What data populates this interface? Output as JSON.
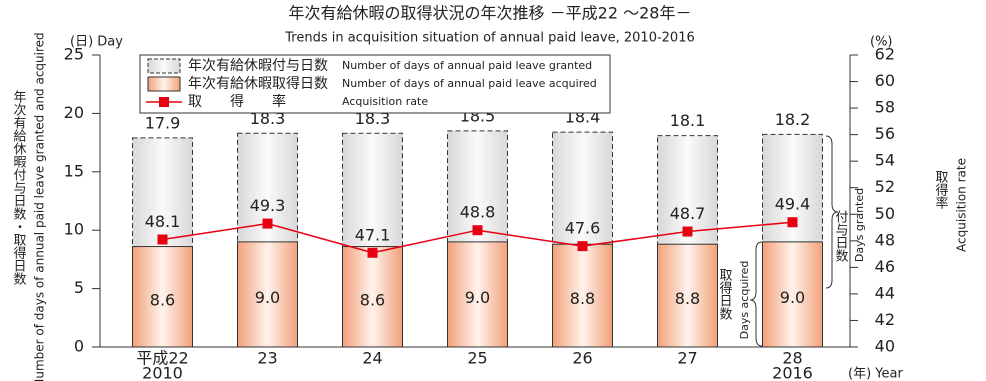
{
  "chart_data": {
    "type": "bar",
    "title": "年次有給休暇の取得状況の年次推移 －平成22 ～28年－",
    "subtitle": "Trends in acquisition situation of annual paid leave, 2010-2016",
    "y_unit": "(日) Day",
    "y_label_jp": "年次有給休暇付与日数・取得日数",
    "y_label_en": "Number of days of annual paid leave granted and acquired",
    "y2_unit": "(%)",
    "y2_label_jp": "取得率",
    "y2_label_en": "Acquisition rate",
    "x_unit": "(年) Year",
    "categories": [
      "平成22",
      "23",
      "24",
      "25",
      "26",
      "27",
      "28"
    ],
    "x_sublabels": [
      "2010",
      null,
      null,
      null,
      null,
      null,
      "2016"
    ],
    "series": [
      {
        "name": "年次有給休暇付与日数",
        "name_en": "Number of days of annual paid leave granted",
        "color": "#e4e4e4",
        "values": [
          17.9,
          18.3,
          18.3,
          18.5,
          18.4,
          18.1,
          18.2
        ]
      },
      {
        "name": "年次有給休暇取得日数",
        "name_en": "Number of days of annual paid leave acquired",
        "color": "#f2a07a",
        "values": [
          8.6,
          9.0,
          8.6,
          9.0,
          8.8,
          8.8,
          9.0
        ],
        "value_labels": [
          "8.6",
          "9.0",
          "8.6",
          "9.0",
          "8.8",
          "8.8",
          "9.0"
        ]
      },
      {
        "name": "取　　得　　率",
        "name_en": "Acquisition rate",
        "color": "#e60012",
        "axis": "y2",
        "values": [
          48.1,
          49.3,
          47.1,
          48.8,
          47.6,
          48.7,
          49.4
        ]
      }
    ],
    "annotations": [
      {
        "jp": "付与日数",
        "en": "Days granted"
      },
      {
        "jp": "取得日数",
        "en": "Days acquired"
      }
    ],
    "ylim": [
      0,
      25
    ],
    "yticks": [
      0,
      5,
      10,
      15,
      20,
      25
    ],
    "y2lim": [
      40,
      62
    ],
    "y2ticks": [
      40,
      42,
      44,
      46,
      48,
      50,
      52,
      54,
      56,
      58,
      60,
      62
    ]
  }
}
